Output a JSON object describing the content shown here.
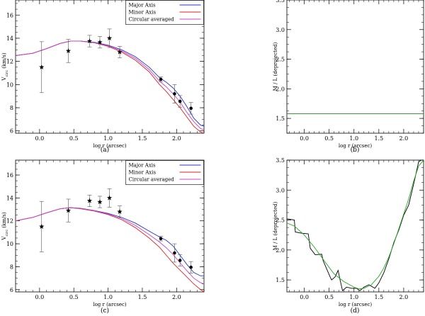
{
  "chart_data": [
    {
      "panel": "(a)",
      "type": "line",
      "xlabel": "log r (arcsec)",
      "ylabel": "V_circ (km/s)",
      "ylabel_main": "V",
      "ylabel_sub": "circ",
      "ylabel_tail": " (km/s)",
      "xlim": [
        -0.35,
        2.4
      ],
      "ylim": [
        5.8,
        17.3
      ],
      "xticks": [
        0.0,
        0.5,
        1.0,
        1.5,
        2.0
      ],
      "xtick_labels": [
        "0.0",
        "0.5",
        "1.0",
        "1.5",
        "2.0"
      ],
      "yticks": [
        6,
        8,
        10,
        12,
        14,
        16
      ],
      "ytick_labels": [
        "6",
        "8",
        "10",
        "12",
        "14",
        "16"
      ],
      "legend": {
        "position": "top-right",
        "entries": [
          {
            "label": "Major Axis",
            "color": "#2233cc"
          },
          {
            "label": "Minor Axis",
            "color": "#dd2222"
          },
          {
            "label": "Circular averaged",
            "color": "#cc44cc"
          }
        ]
      },
      "series": [
        {
          "name": "Major Axis",
          "color": "#2233cc",
          "x": [
            -0.35,
            -0.1,
            0.1,
            0.3,
            0.45,
            0.6,
            0.8,
            1.0,
            1.2,
            1.4,
            1.6,
            1.75,
            1.85,
            1.95,
            2.05,
            2.15,
            2.25,
            2.35,
            2.4
          ],
          "y": [
            12.5,
            12.7,
            13.1,
            13.55,
            13.75,
            13.75,
            13.65,
            13.4,
            13.0,
            12.4,
            11.5,
            10.6,
            10.2,
            9.7,
            9.0,
            8.1,
            7.1,
            6.5,
            6.4
          ]
        },
        {
          "name": "Minor Axis",
          "color": "#dd2222",
          "x": [
            -0.35,
            -0.1,
            0.1,
            0.3,
            0.45,
            0.6,
            0.8,
            1.0,
            1.2,
            1.4,
            1.6,
            1.75,
            1.85,
            1.95,
            2.05,
            2.15,
            2.25,
            2.35,
            2.4
          ],
          "y": [
            12.5,
            12.7,
            13.1,
            13.55,
            13.75,
            13.75,
            13.6,
            13.3,
            12.8,
            12.1,
            11.1,
            10.0,
            9.4,
            8.7,
            8.0,
            7.2,
            6.4,
            5.9,
            5.8
          ]
        },
        {
          "name": "Circular averaged",
          "color": "#cc44cc",
          "x": [
            -0.35,
            -0.1,
            0.1,
            0.3,
            0.45,
            0.6,
            0.8,
            1.0,
            1.2,
            1.4,
            1.6,
            1.75,
            1.85,
            1.95,
            2.05,
            2.15,
            2.25,
            2.35,
            2.4
          ],
          "y": [
            12.5,
            12.7,
            13.1,
            13.55,
            13.75,
            13.75,
            13.62,
            13.35,
            12.9,
            12.25,
            11.3,
            10.3,
            9.8,
            9.2,
            8.5,
            7.6,
            6.8,
            6.2,
            6.1
          ]
        }
      ],
      "stars": [
        {
          "x": 0.03,
          "y": 11.5,
          "err": 2.2
        },
        {
          "x": 0.42,
          "y": 12.9,
          "err": 1.0
        },
        {
          "x": 0.73,
          "y": 13.75,
          "err": 0.5
        },
        {
          "x": 0.88,
          "y": 13.65,
          "err": 0.5
        },
        {
          "x": 1.02,
          "y": 14.0,
          "err": 0.8
        },
        {
          "x": 1.17,
          "y": 12.8,
          "err": 0.5
        }
      ],
      "circles": [
        {
          "x": 1.77,
          "y": 10.45,
          "err": 0.2
        },
        {
          "x": 1.97,
          "y": 9.2,
          "err": 0.8
        },
        {
          "x": 2.05,
          "y": 8.55,
          "err": 0.5
        },
        {
          "x": 2.21,
          "y": 7.95,
          "err": 0.5
        }
      ]
    },
    {
      "panel": "(b)",
      "type": "line",
      "xlabel": "log r (arcsec)",
      "ylabel": "M / L (deprojected)",
      "xlim": [
        -0.35,
        2.4
      ],
      "ylim": [
        1.25,
        3.5
      ],
      "xticks": [
        0.0,
        0.5,
        1.0,
        1.5,
        2.0
      ],
      "xtick_labels": [
        "0.0",
        "0.5",
        "1.0",
        "1.5",
        "2.0"
      ],
      "yticks": [
        1.5,
        2.0,
        2.5,
        3.0,
        3.5
      ],
      "ytick_labels": [
        "1.5",
        "2.0",
        "2.5",
        "3.0",
        "3.5"
      ],
      "series": [
        {
          "name": "constant M/L",
          "color": "#228822",
          "x": [
            -0.35,
            2.4
          ],
          "y": [
            1.58,
            1.58
          ]
        }
      ]
    },
    {
      "panel": "(c)",
      "type": "line",
      "xlabel": "log r (arcsec)",
      "ylabel": "V_circ (km/s)",
      "ylabel_main": "V",
      "ylabel_sub": "circ",
      "ylabel_tail": " (km/s)",
      "xlim": [
        -0.35,
        2.4
      ],
      "ylim": [
        5.8,
        17.3
      ],
      "xticks": [
        0.0,
        0.5,
        1.0,
        1.5,
        2.0
      ],
      "xtick_labels": [
        "0.0",
        "0.5",
        "1.0",
        "1.5",
        "2.0"
      ],
      "yticks": [
        6,
        8,
        10,
        12,
        14,
        16
      ],
      "ytick_labels": [
        "6",
        "8",
        "10",
        "12",
        "14",
        "16"
      ],
      "legend": {
        "position": "top-right",
        "entries": [
          {
            "label": "Major Axis",
            "color": "#2233cc"
          },
          {
            "label": "Minor Axis",
            "color": "#dd2222"
          },
          {
            "label": "Circular averaged",
            "color": "#cc44cc"
          }
        ]
      },
      "series": [
        {
          "name": "Major Axis",
          "color": "#2233cc",
          "x": [
            -0.35,
            -0.1,
            0.1,
            0.3,
            0.45,
            0.6,
            0.8,
            1.0,
            1.2,
            1.4,
            1.6,
            1.75,
            1.85,
            1.95,
            2.05,
            2.15,
            2.25,
            2.35,
            2.4
          ],
          "y": [
            12.0,
            12.3,
            12.7,
            13.05,
            13.15,
            13.1,
            12.9,
            12.65,
            12.3,
            11.8,
            11.1,
            10.6,
            10.3,
            9.8,
            9.0,
            8.2,
            7.5,
            7.2,
            7.2
          ]
        },
        {
          "name": "Minor Axis",
          "color": "#dd2222",
          "x": [
            -0.35,
            -0.1,
            0.1,
            0.3,
            0.45,
            0.6,
            0.8,
            1.0,
            1.2,
            1.4,
            1.6,
            1.75,
            1.85,
            1.95,
            2.05,
            2.15,
            2.25,
            2.35,
            2.4
          ],
          "y": [
            12.0,
            12.3,
            12.7,
            13.05,
            13.15,
            13.05,
            12.85,
            12.55,
            12.1,
            11.4,
            10.5,
            9.7,
            9.0,
            8.3,
            7.7,
            7.1,
            6.5,
            6.0,
            5.8
          ]
        },
        {
          "name": "Circular averaged",
          "color": "#cc44cc",
          "x": [
            -0.35,
            -0.1,
            0.1,
            0.3,
            0.45,
            0.6,
            0.8,
            1.0,
            1.2,
            1.4,
            1.6,
            1.75,
            1.85,
            1.95,
            2.05,
            2.15,
            2.25,
            2.35,
            2.4
          ],
          "y": [
            12.0,
            12.3,
            12.7,
            13.05,
            13.15,
            13.08,
            12.88,
            12.6,
            12.2,
            11.6,
            10.8,
            10.15,
            9.65,
            9.05,
            8.35,
            7.65,
            7.0,
            6.6,
            6.5
          ]
        }
      ],
      "stars": [
        {
          "x": 0.03,
          "y": 11.5,
          "err": 2.2
        },
        {
          "x": 0.42,
          "y": 12.9,
          "err": 1.0
        },
        {
          "x": 0.73,
          "y": 13.75,
          "err": 0.5
        },
        {
          "x": 0.88,
          "y": 13.65,
          "err": 0.5
        },
        {
          "x": 1.02,
          "y": 14.0,
          "err": 0.8
        },
        {
          "x": 1.17,
          "y": 12.8,
          "err": 0.5
        }
      ],
      "circles": [
        {
          "x": 1.77,
          "y": 10.45,
          "err": 0.2
        },
        {
          "x": 1.97,
          "y": 9.2,
          "err": 0.8
        },
        {
          "x": 2.05,
          "y": 8.55,
          "err": 0.5
        },
        {
          "x": 2.21,
          "y": 7.95,
          "err": 0.5
        }
      ]
    },
    {
      "panel": "(d)",
      "type": "line",
      "xlabel": "log r (arcsec)",
      "ylabel": "M / L (deprojected)",
      "xlim": [
        -0.35,
        2.4
      ],
      "ylim": [
        1.3,
        3.5
      ],
      "xticks": [
        0.0,
        0.5,
        1.0,
        1.5,
        2.0
      ],
      "xtick_labels": [
        "0.0",
        "0.5",
        "1.0",
        "1.5",
        "2.0"
      ],
      "yticks": [
        1.5,
        2.0,
        2.5,
        3.0,
        3.5
      ],
      "ytick_labels": [
        "1.5",
        "2.0",
        "2.5",
        "3.0",
        "3.5"
      ],
      "series": [
        {
          "name": "M/L profile",
          "color": "#000000",
          "x": [
            -0.35,
            -0.2,
            -0.18,
            -0.05,
            0.08,
            0.12,
            0.22,
            0.35,
            0.38,
            0.52,
            0.55,
            0.62,
            0.68,
            0.72,
            0.77,
            0.85,
            0.95,
            1.05,
            1.12,
            1.2,
            1.3,
            1.42,
            1.5,
            1.6,
            1.7,
            1.8,
            1.9,
            2.0,
            2.1,
            2.2,
            2.3,
            2.35,
            2.4
          ],
          "y": [
            2.52,
            2.5,
            2.3,
            2.28,
            2.27,
            2.03,
            1.92,
            1.93,
            1.82,
            1.55,
            1.5,
            1.55,
            1.66,
            1.5,
            1.32,
            1.38,
            1.36,
            1.36,
            1.32,
            1.38,
            1.42,
            1.36,
            1.45,
            1.62,
            1.85,
            2.12,
            2.33,
            2.58,
            2.75,
            3.1,
            3.47,
            3.5,
            3.5
          ]
        },
        {
          "name": "smooth fit",
          "color": "#22aa22",
          "x": [
            -0.35,
            -0.2,
            0.0,
            0.2,
            0.4,
            0.6,
            0.8,
            1.0,
            1.1,
            1.2,
            1.35,
            1.5,
            1.6,
            1.7,
            1.8,
            1.9,
            2.0,
            2.1,
            2.2,
            2.3,
            2.4
          ],
          "y": [
            2.45,
            2.4,
            2.25,
            2.05,
            1.82,
            1.6,
            1.47,
            1.38,
            1.35,
            1.36,
            1.42,
            1.56,
            1.7,
            1.88,
            2.1,
            2.35,
            2.6,
            2.85,
            3.15,
            3.4,
            3.5
          ]
        }
      ]
    }
  ]
}
